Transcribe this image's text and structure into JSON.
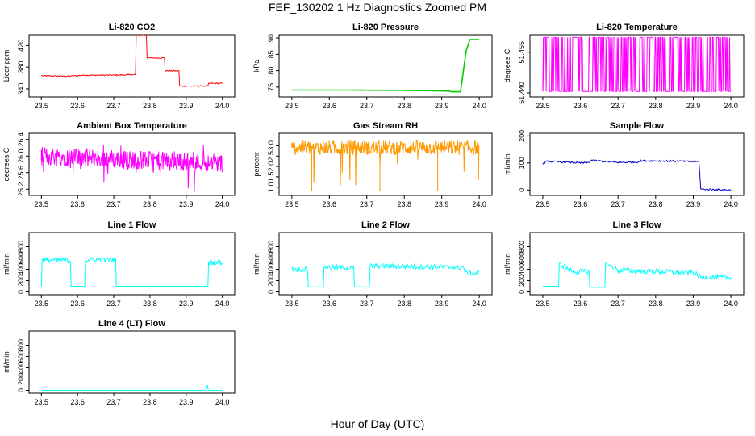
{
  "title": "FEF_130202  1 Hz Diagnostics Zoomed PM",
  "xlabel": "Hour of Day (UTC)",
  "colors": {
    "red": "#ff0000",
    "green": "#00cc00",
    "magenta": "#ff00ff",
    "orange": "#ff9900",
    "blue": "#0000cc",
    "cyan": "#00ffff"
  },
  "chart_data": [
    {
      "type": "line",
      "title": "Li-820 CO2",
      "ylabel": "Licor ppm",
      "color": "#ff0000",
      "xlim": [
        23.5,
        24.0
      ],
      "ylim": [
        325,
        440
      ],
      "xticks": [
        "23.5",
        "23.6",
        "23.7",
        "23.8",
        "23.9",
        "24.0"
      ],
      "yticks": [
        "340",
        "380",
        "420"
      ],
      "series": [
        {
          "x": [
            23.5,
            23.57,
            23.62,
            23.69,
            23.76,
            23.762,
            23.79,
            23.792,
            23.84,
            23.842,
            23.88,
            23.882,
            23.95,
            23.96,
            23.962,
            24.0
          ],
          "values": [
            364,
            363,
            365,
            365,
            366,
            440,
            440,
            397,
            397,
            373,
            373,
            345,
            345,
            345,
            350,
            350
          ]
        }
      ]
    },
    {
      "type": "line",
      "title": "Li-820 Pressure",
      "ylabel": "kPa",
      "color": "#00cc00",
      "xlim": [
        23.5,
        24.0
      ],
      "ylim": [
        72,
        91
      ],
      "xticks": [
        "23.5",
        "23.6",
        "23.7",
        "23.8",
        "23.9",
        "24.0"
      ],
      "yticks": [
        "75",
        "80",
        "85",
        "90"
      ],
      "series": [
        {
          "x": [
            23.5,
            23.65,
            23.8,
            23.92,
            23.925,
            23.95,
            23.965,
            23.975,
            24.0
          ],
          "values": [
            74.1,
            74.1,
            74.0,
            73.8,
            73.6,
            73.6,
            86,
            89.5,
            89.5
          ]
        }
      ]
    },
    {
      "type": "line",
      "title": "Li-820 Temperature",
      "ylabel": "degrees C",
      "color": "#ff00ff",
      "xlim": [
        23.5,
        24.0
      ],
      "ylim": [
        51.4385,
        51.4615
      ],
      "xticks": [
        "23.5",
        "23.6",
        "23.7",
        "23.8",
        "23.9",
        "24.0"
      ],
      "yticks": [
        "51.440",
        "51.455"
      ],
      "series": [
        {
          "x": [
            23.5,
            24.0
          ],
          "values": [
            51.4405,
            51.4605
          ]
        }
      ]
    },
    {
      "type": "line",
      "title": "Ambient Box Temperature",
      "ylabel": "degrees C",
      "color": "#ff00ff",
      "xlim": [
        23.5,
        24.0
      ],
      "ylim": [
        25.05,
        26.55
      ],
      "xticks": [
        "23.5",
        "23.6",
        "23.7",
        "23.8",
        "23.9",
        "24.0"
      ],
      "yticks": [
        "25.2",
        "25.6",
        "26.0",
        "26.4"
      ],
      "series": [
        {
          "x": [
            23.5,
            24.0
          ],
          "values": [
            25.85,
            25.8
          ]
        }
      ]
    },
    {
      "type": "line",
      "title": "Gas Stream RH",
      "ylabel": "percent",
      "color": "#ff9900",
      "xlim": [
        23.5,
        24.0
      ],
      "ylim": [
        0.6,
        3.6
      ],
      "xticks": [
        "23.5",
        "23.6",
        "23.7",
        "23.8",
        "23.9",
        "24.0"
      ],
      "yticks": [
        "1.0",
        "1.5",
        "2.0",
        "2.5",
        "3.0"
      ],
      "series": [
        {
          "x": [
            23.5,
            24.0
          ],
          "values": [
            2.9,
            2.9
          ]
        }
      ]
    },
    {
      "type": "line",
      "title": "Sample Flow",
      "ylabel": "ml/min",
      "color": "#0000cc",
      "xlim": [
        23.5,
        24.0
      ],
      "ylim": [
        -20,
        210
      ],
      "xticks": [
        "23.5",
        "23.6",
        "23.7",
        "23.8",
        "23.9",
        "24.0"
      ],
      "yticks": [
        "0",
        "100",
        "200"
      ],
      "series": [
        {
          "x": [
            23.5,
            23.51,
            23.58,
            23.6,
            23.62,
            23.63,
            23.7,
            23.75,
            23.76,
            23.8,
            23.85,
            23.9,
            23.915,
            23.92,
            24.0
          ],
          "values": [
            95,
            106,
            102,
            100,
            101,
            110,
            102,
            103,
            108,
            108,
            107,
            105,
            105,
            3,
            0
          ]
        }
      ]
    },
    {
      "type": "line",
      "title": "Line 1 Flow",
      "ylabel": "ml/min",
      "color": "#00ffff",
      "xlim": [
        23.5,
        24.0
      ],
      "ylim": [
        -50,
        1050
      ],
      "xticks": [
        "23.5",
        "23.6",
        "23.7",
        "23.8",
        "23.9",
        "24.0"
      ],
      "yticks": [
        "0",
        "200",
        "400",
        "600",
        "800"
      ],
      "series": [
        {
          "x": [
            23.5,
            23.502,
            23.58,
            23.582,
            23.62,
            23.622,
            23.705,
            23.707,
            23.96,
            23.962,
            24.0
          ],
          "values": [
            100,
            560,
            560,
            100,
            100,
            570,
            570,
            100,
            100,
            520,
            520
          ]
        }
      ]
    },
    {
      "type": "line",
      "title": "Line 2 Flow",
      "ylabel": "ml/min",
      "color": "#00ffff",
      "xlim": [
        23.5,
        24.0
      ],
      "ylim": [
        -50,
        1050
      ],
      "xticks": [
        "23.5",
        "23.6",
        "23.7",
        "23.8",
        "23.9",
        "24.0"
      ],
      "yticks": [
        "0",
        "200",
        "400",
        "600",
        "800"
      ],
      "series": [
        {
          "x": [
            23.5,
            23.542,
            23.544,
            23.584,
            23.586,
            23.665,
            23.667,
            23.707,
            23.709,
            23.96,
            23.962,
            24.0
          ],
          "values": [
            400,
            400,
            90,
            90,
            440,
            420,
            90,
            90,
            460,
            430,
            330,
            330
          ]
        }
      ]
    },
    {
      "type": "line",
      "title": "Line 3 Flow",
      "ylabel": "ml/min",
      "color": "#00ffff",
      "xlim": [
        23.5,
        24.0
      ],
      "ylim": [
        -50,
        1050
      ],
      "xticks": [
        "23.5",
        "23.6",
        "23.7",
        "23.8",
        "23.9",
        "24.0"
      ],
      "yticks": [
        "0",
        "200",
        "400",
        "600",
        "800"
      ],
      "series": [
        {
          "x": [
            23.5,
            23.542,
            23.544,
            23.58,
            23.623,
            23.625,
            23.665,
            23.667,
            23.7,
            23.9,
            23.92,
            24.0
          ],
          "values": [
            100,
            100,
            500,
            360,
            360,
            80,
            80,
            500,
            380,
            340,
            260,
            260
          ]
        }
      ]
    },
    {
      "type": "line",
      "title": "Line 4 (LT) Flow",
      "ylabel": "ml/min",
      "color": "#00ffff",
      "xlim": [
        23.5,
        24.0
      ],
      "ylim": [
        -50,
        1050
      ],
      "xticks": [
        "23.5",
        "23.6",
        "23.7",
        "23.8",
        "23.9",
        "24.0"
      ],
      "yticks": [
        "0",
        "200",
        "400",
        "600",
        "800"
      ],
      "series": [
        {
          "x": [
            23.5,
            23.955,
            23.957,
            23.959,
            23.961,
            24.0
          ],
          "values": [
            0,
            0,
            80,
            80,
            0,
            0
          ]
        }
      ]
    }
  ]
}
